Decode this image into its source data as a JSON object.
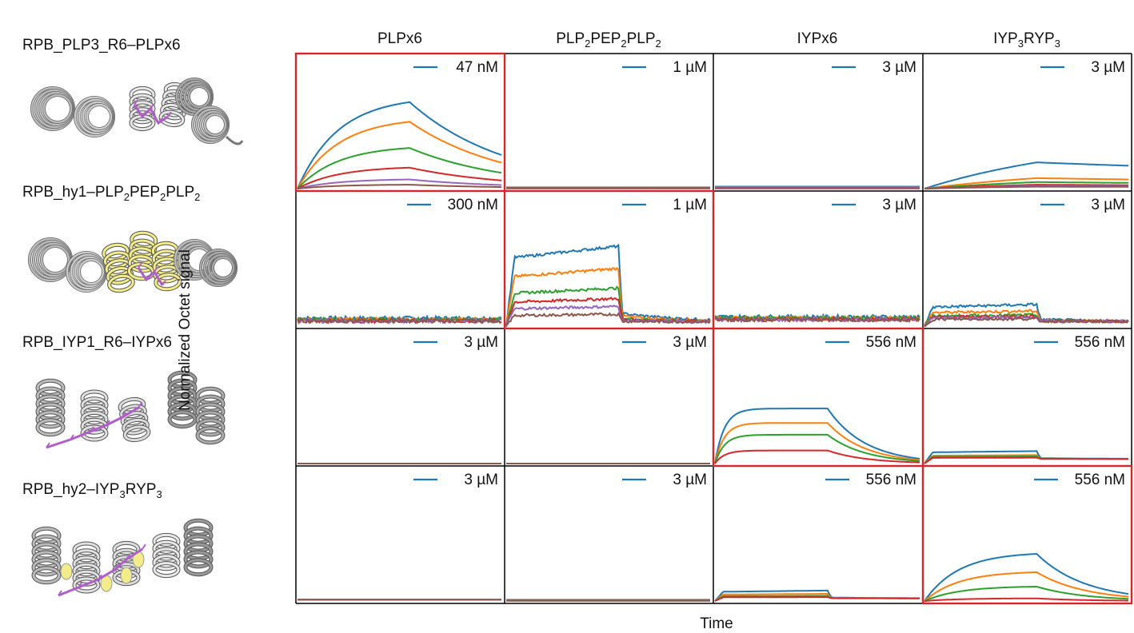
{
  "proteins": [
    {
      "base": "RPB_PLP3_R6–PLPx6",
      "subs": []
    },
    {
      "base": "RPB_hy1–PLP",
      "subs": [
        "2",
        "PEP",
        "2",
        "PLP",
        "2"
      ]
    },
    {
      "base": "RPB_IYP1_R6–IYPx6",
      "subs": []
    },
    {
      "base": "RPB_hy2–IYP",
      "subs": [
        "3",
        "RYP",
        "3"
      ]
    }
  ],
  "columns": [
    {
      "parts": [
        "PLPx6"
      ]
    },
    {
      "parts": [
        "PLP",
        "2",
        "PEP",
        "2",
        "PLP",
        "2"
      ]
    },
    {
      "parts": [
        "IYPx6"
      ]
    },
    {
      "parts": [
        "IYP",
        "3",
        "RYP",
        "3"
      ]
    }
  ],
  "colors": {
    "series": [
      "#1f77b4",
      "#ff7f0e",
      "#2ca02c",
      "#d62728",
      "#9467bd",
      "#8c564b"
    ],
    "highlight": "#d62728",
    "helixGray": "#9a9a9a",
    "helixYellow": "#f2ec8a",
    "peptide": "#b05fc9"
  },
  "chart_data": {
    "type": "line",
    "title": "",
    "xlabel": "Time",
    "ylabel": "Normalized Octet signal",
    "note": "4x4 grid of binding traces; rows = designed binders, columns = peptides; y normalized 0-1, x = time (association then dissociation at 0.55)",
    "panels": [
      {
        "row": 0,
        "col": 0,
        "conc": "47 nM",
        "highlight": true,
        "kind": "smooth",
        "amps": [
          0.66,
          0.51,
          0.31,
          0.16,
          0.07,
          0.03
        ],
        "koff": 0.35,
        "kon": 5,
        "noise": 0
      },
      {
        "row": 0,
        "col": 1,
        "conc": "1 µM",
        "highlight": false,
        "kind": "flat",
        "amps": [
          0.01,
          0.008,
          0.006,
          0.004,
          0.003,
          0.002
        ],
        "noise": 0
      },
      {
        "row": 0,
        "col": 2,
        "conc": "3 µM",
        "highlight": false,
        "kind": "flat",
        "amps": [
          0.015,
          0.01,
          0.008,
          0.006,
          0.004,
          0.002
        ],
        "noise": 0
      },
      {
        "row": 0,
        "col": 3,
        "conc": "3 µM",
        "highlight": false,
        "kind": "slow",
        "amps": [
          0.2,
          0.08,
          0.05,
          0.03,
          0.02,
          0.015
        ],
        "koff": 0.05,
        "kon": 1.2,
        "noise": 0
      },
      {
        "row": 1,
        "col": 0,
        "conc": "300 nM",
        "highlight": false,
        "kind": "flat",
        "amps": [
          0.06,
          0.05,
          0.05,
          0.04,
          0.04,
          0.04
        ],
        "noise": 0.015
      },
      {
        "row": 1,
        "col": 1,
        "conc": "1 µM",
        "highlight": true,
        "kind": "sharp",
        "amps": [
          0.58,
          0.41,
          0.26,
          0.18,
          0.12,
          0.06
        ],
        "base": 0.06,
        "noise": 0.01
      },
      {
        "row": 1,
        "col": 2,
        "conc": "3 µM",
        "highlight": false,
        "kind": "flat",
        "amps": [
          0.07,
          0.06,
          0.06,
          0.05,
          0.05,
          0.05
        ],
        "noise": 0.015
      },
      {
        "row": 1,
        "col": 3,
        "conc": "3 µM",
        "highlight": false,
        "kind": "sharp",
        "amps": [
          0.13,
          0.08,
          0.05,
          0.04,
          0.03,
          0.02
        ],
        "base": 0.07,
        "noise": 0.01
      },
      {
        "row": 2,
        "col": 0,
        "conc": "3 µM",
        "highlight": false,
        "kind": "flat",
        "amps": [
          0.0,
          0.0,
          0.0,
          0.0,
          0.0,
          0.0
        ],
        "noise": 0
      },
      {
        "row": 2,
        "col": 1,
        "conc": "3 µM",
        "highlight": false,
        "kind": "flat",
        "amps": [
          0.0,
          0.0,
          0.0,
          0.0,
          0.0,
          0.0
        ],
        "noise": 0
      },
      {
        "row": 2,
        "col": 2,
        "conc": "556 nM",
        "highlight": true,
        "kind": "smooth",
        "amps": [
          0.42,
          0.31,
          0.22,
          0.1
        ],
        "koff": 0.9,
        "kon": 22,
        "noise": 0
      },
      {
        "row": 2,
        "col": 3,
        "conc": "556 nM",
        "highlight": false,
        "kind": "sharp",
        "amps": [
          0.06,
          0.03,
          0.02,
          0.01
        ],
        "base": 0.07,
        "noise": 0
      },
      {
        "row": 3,
        "col": 0,
        "conc": "3 µM",
        "highlight": false,
        "kind": "flat",
        "amps": [
          0.01,
          0.01,
          0.01,
          0.01,
          0.01,
          0.01
        ],
        "noise": 0
      },
      {
        "row": 3,
        "col": 1,
        "conc": "3 µM",
        "highlight": false,
        "kind": "flat",
        "amps": [
          0.01,
          0.008,
          0.006,
          0.004,
          0.003,
          0.002
        ],
        "noise": 0
      },
      {
        "row": 3,
        "col": 2,
        "conc": "556 nM",
        "highlight": false,
        "kind": "sharp",
        "amps": [
          0.06,
          0.035,
          0.02,
          0.01
        ],
        "base": 0.04,
        "noise": 0
      },
      {
        "row": 3,
        "col": 3,
        "conc": "556 nM",
        "highlight": true,
        "kind": "smooth",
        "amps": [
          0.36,
          0.22,
          0.11,
          0.02
        ],
        "koff": 0.7,
        "kon": 6,
        "noise": 0
      }
    ]
  }
}
